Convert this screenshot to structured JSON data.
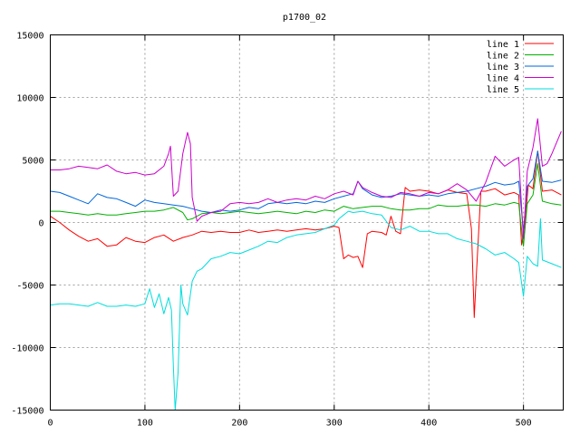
{
  "chart_data": {
    "type": "line",
    "title": "p1700_02",
    "xlabel": "",
    "ylabel": "",
    "xlim": [
      0,
      542
    ],
    "ylim": [
      -15000,
      15000
    ],
    "x_ticks": [
      0,
      100,
      200,
      300,
      400,
      500
    ],
    "y_ticks": [
      -15000,
      -10000,
      -5000,
      0,
      5000,
      10000,
      15000
    ],
    "grid": true,
    "legend_position": "top-right",
    "series": [
      {
        "name": "line 1",
        "color": "#ff0000",
        "points": [
          [
            0,
            500
          ],
          [
            10,
            0
          ],
          [
            20,
            -600
          ],
          [
            30,
            -1100
          ],
          [
            40,
            -1500
          ],
          [
            50,
            -1300
          ],
          [
            60,
            -1900
          ],
          [
            70,
            -1800
          ],
          [
            80,
            -1200
          ],
          [
            90,
            -1500
          ],
          [
            100,
            -1600
          ],
          [
            110,
            -1200
          ],
          [
            120,
            -1000
          ],
          [
            130,
            -1500
          ],
          [
            140,
            -1200
          ],
          [
            150,
            -1000
          ],
          [
            160,
            -700
          ],
          [
            170,
            -800
          ],
          [
            180,
            -700
          ],
          [
            190,
            -800
          ],
          [
            200,
            -800
          ],
          [
            210,
            -600
          ],
          [
            220,
            -800
          ],
          [
            230,
            -700
          ],
          [
            240,
            -600
          ],
          [
            250,
            -700
          ],
          [
            260,
            -600
          ],
          [
            270,
            -500
          ],
          [
            280,
            -600
          ],
          [
            290,
            -500
          ],
          [
            300,
            -300
          ],
          [
            305,
            -400
          ],
          [
            310,
            -2900
          ],
          [
            315,
            -2600
          ],
          [
            320,
            -2800
          ],
          [
            325,
            -2700
          ],
          [
            330,
            -3600
          ],
          [
            335,
            -900
          ],
          [
            340,
            -700
          ],
          [
            350,
            -800
          ],
          [
            355,
            -1000
          ],
          [
            360,
            500
          ],
          [
            365,
            -700
          ],
          [
            370,
            -900
          ],
          [
            375,
            2800
          ],
          [
            380,
            2500
          ],
          [
            390,
            2600
          ],
          [
            400,
            2500
          ],
          [
            410,
            2300
          ],
          [
            420,
            2600
          ],
          [
            430,
            2400
          ],
          [
            440,
            2300
          ],
          [
            445,
            -500
          ],
          [
            448,
            -7600
          ],
          [
            450,
            -4500
          ],
          [
            455,
            2500
          ],
          [
            460,
            2500
          ],
          [
            470,
            2700
          ],
          [
            480,
            2200
          ],
          [
            490,
            2400
          ],
          [
            495,
            2200
          ],
          [
            498,
            -1800
          ],
          [
            502,
            200
          ],
          [
            505,
            3000
          ],
          [
            510,
            2700
          ],
          [
            515,
            5700
          ],
          [
            520,
            2500
          ],
          [
            530,
            2600
          ],
          [
            540,
            2200
          ]
        ]
      },
      {
        "name": "line 2",
        "color": "#00b000",
        "points": [
          [
            0,
            900
          ],
          [
            10,
            900
          ],
          [
            20,
            800
          ],
          [
            30,
            700
          ],
          [
            40,
            600
          ],
          [
            50,
            700
          ],
          [
            60,
            600
          ],
          [
            70,
            600
          ],
          [
            80,
            700
          ],
          [
            90,
            800
          ],
          [
            100,
            900
          ],
          [
            110,
            900
          ],
          [
            120,
            1000
          ],
          [
            130,
            1200
          ],
          [
            140,
            800
          ],
          [
            145,
            200
          ],
          [
            150,
            300
          ],
          [
            160,
            700
          ],
          [
            170,
            800
          ],
          [
            180,
            700
          ],
          [
            190,
            800
          ],
          [
            200,
            900
          ],
          [
            210,
            800
          ],
          [
            220,
            700
          ],
          [
            230,
            800
          ],
          [
            240,
            900
          ],
          [
            250,
            800
          ],
          [
            260,
            700
          ],
          [
            270,
            900
          ],
          [
            280,
            800
          ],
          [
            290,
            1000
          ],
          [
            300,
            900
          ],
          [
            310,
            1300
          ],
          [
            320,
            1100
          ],
          [
            330,
            1200
          ],
          [
            340,
            1300
          ],
          [
            350,
            1300
          ],
          [
            360,
            1100
          ],
          [
            370,
            1000
          ],
          [
            380,
            1000
          ],
          [
            390,
            1100
          ],
          [
            400,
            1100
          ],
          [
            410,
            1400
          ],
          [
            420,
            1300
          ],
          [
            430,
            1300
          ],
          [
            440,
            1400
          ],
          [
            450,
            1400
          ],
          [
            460,
            1300
          ],
          [
            470,
            1500
          ],
          [
            480,
            1400
          ],
          [
            490,
            1600
          ],
          [
            495,
            1500
          ],
          [
            500,
            -1900
          ],
          [
            504,
            1500
          ],
          [
            510,
            2200
          ],
          [
            515,
            4700
          ],
          [
            520,
            1700
          ],
          [
            530,
            1500
          ],
          [
            540,
            1400
          ]
        ]
      },
      {
        "name": "line 3",
        "color": "#0066dd",
        "points": [
          [
            0,
            2500
          ],
          [
            10,
            2400
          ],
          [
            20,
            2100
          ],
          [
            30,
            1800
          ],
          [
            40,
            1500
          ],
          [
            50,
            2300
          ],
          [
            60,
            2000
          ],
          [
            70,
            1900
          ],
          [
            80,
            1600
          ],
          [
            90,
            1300
          ],
          [
            100,
            1800
          ],
          [
            110,
            1600
          ],
          [
            120,
            1500
          ],
          [
            130,
            1400
          ],
          [
            140,
            1300
          ],
          [
            150,
            1100
          ],
          [
            160,
            900
          ],
          [
            170,
            800
          ],
          [
            180,
            1000
          ],
          [
            190,
            900
          ],
          [
            200,
            1000
          ],
          [
            210,
            1200
          ],
          [
            220,
            1100
          ],
          [
            230,
            1500
          ],
          [
            240,
            1600
          ],
          [
            250,
            1500
          ],
          [
            260,
            1600
          ],
          [
            270,
            1500
          ],
          [
            280,
            1700
          ],
          [
            290,
            1600
          ],
          [
            300,
            1900
          ],
          [
            310,
            2100
          ],
          [
            320,
            2300
          ],
          [
            325,
            3300
          ],
          [
            330,
            2700
          ],
          [
            340,
            2200
          ],
          [
            350,
            2000
          ],
          [
            360,
            2100
          ],
          [
            370,
            2300
          ],
          [
            380,
            2200
          ],
          [
            390,
            2100
          ],
          [
            400,
            2200
          ],
          [
            410,
            2100
          ],
          [
            420,
            2300
          ],
          [
            430,
            2400
          ],
          [
            440,
            2500
          ],
          [
            450,
            2700
          ],
          [
            460,
            2900
          ],
          [
            470,
            3200
          ],
          [
            480,
            3000
          ],
          [
            490,
            3100
          ],
          [
            495,
            3300
          ],
          [
            500,
            -700
          ],
          [
            504,
            2900
          ],
          [
            510,
            3500
          ],
          [
            515,
            5700
          ],
          [
            520,
            3300
          ],
          [
            530,
            3200
          ],
          [
            540,
            3400
          ]
        ]
      },
      {
        "name": "line 4",
        "color": "#cc00cc",
        "points": [
          [
            0,
            4200
          ],
          [
            10,
            4200
          ],
          [
            20,
            4300
          ],
          [
            30,
            4500
          ],
          [
            40,
            4400
          ],
          [
            50,
            4300
          ],
          [
            60,
            4600
          ],
          [
            70,
            4100
          ],
          [
            80,
            3900
          ],
          [
            90,
            4000
          ],
          [
            100,
            3800
          ],
          [
            110,
            3900
          ],
          [
            120,
            4500
          ],
          [
            125,
            5500
          ],
          [
            127,
            6100
          ],
          [
            130,
            2100
          ],
          [
            135,
            2500
          ],
          [
            140,
            5500
          ],
          [
            145,
            7200
          ],
          [
            148,
            6300
          ],
          [
            150,
            2000
          ],
          [
            155,
            100
          ],
          [
            160,
            500
          ],
          [
            170,
            800
          ],
          [
            180,
            900
          ],
          [
            190,
            1500
          ],
          [
            200,
            1600
          ],
          [
            210,
            1500
          ],
          [
            220,
            1600
          ],
          [
            230,
            1900
          ],
          [
            240,
            1600
          ],
          [
            250,
            1800
          ],
          [
            260,
            1900
          ],
          [
            270,
            1800
          ],
          [
            280,
            2100
          ],
          [
            290,
            1900
          ],
          [
            300,
            2300
          ],
          [
            310,
            2500
          ],
          [
            320,
            2200
          ],
          [
            325,
            3300
          ],
          [
            330,
            2800
          ],
          [
            340,
            2400
          ],
          [
            350,
            2100
          ],
          [
            360,
            2000
          ],
          [
            370,
            2400
          ],
          [
            380,
            2300
          ],
          [
            390,
            2100
          ],
          [
            400,
            2400
          ],
          [
            410,
            2300
          ],
          [
            420,
            2600
          ],
          [
            430,
            3100
          ],
          [
            440,
            2600
          ],
          [
            450,
            1700
          ],
          [
            460,
            3200
          ],
          [
            470,
            5300
          ],
          [
            480,
            4500
          ],
          [
            490,
            5000
          ],
          [
            495,
            5200
          ],
          [
            500,
            -1300
          ],
          [
            504,
            4100
          ],
          [
            510,
            6000
          ],
          [
            515,
            8300
          ],
          [
            520,
            4500
          ],
          [
            525,
            4700
          ],
          [
            530,
            5500
          ],
          [
            540,
            7300
          ]
        ]
      },
      {
        "name": "line 5",
        "color": "#00dddd",
        "points": [
          [
            0,
            -6600
          ],
          [
            10,
            -6500
          ],
          [
            20,
            -6500
          ],
          [
            30,
            -6600
          ],
          [
            40,
            -6700
          ],
          [
            50,
            -6400
          ],
          [
            60,
            -6700
          ],
          [
            70,
            -6700
          ],
          [
            80,
            -6600
          ],
          [
            90,
            -6700
          ],
          [
            100,
            -6500
          ],
          [
            105,
            -5300
          ],
          [
            110,
            -6800
          ],
          [
            115,
            -5700
          ],
          [
            120,
            -7300
          ],
          [
            125,
            -6000
          ],
          [
            128,
            -7000
          ],
          [
            130,
            -11500
          ],
          [
            132,
            -15000
          ],
          [
            135,
            -12000
          ],
          [
            138,
            -5000
          ],
          [
            140,
            -6500
          ],
          [
            145,
            -7400
          ],
          [
            150,
            -4700
          ],
          [
            155,
            -3900
          ],
          [
            160,
            -3700
          ],
          [
            170,
            -2900
          ],
          [
            180,
            -2700
          ],
          [
            190,
            -2400
          ],
          [
            200,
            -2500
          ],
          [
            210,
            -2200
          ],
          [
            220,
            -1900
          ],
          [
            230,
            -1500
          ],
          [
            240,
            -1600
          ],
          [
            250,
            -1200
          ],
          [
            260,
            -1000
          ],
          [
            270,
            -900
          ],
          [
            280,
            -800
          ],
          [
            290,
            -500
          ],
          [
            300,
            -200
          ],
          [
            305,
            300
          ],
          [
            310,
            600
          ],
          [
            315,
            900
          ],
          [
            320,
            800
          ],
          [
            330,
            900
          ],
          [
            340,
            700
          ],
          [
            350,
            600
          ],
          [
            360,
            -400
          ],
          [
            370,
            -600
          ],
          [
            380,
            -300
          ],
          [
            390,
            -700
          ],
          [
            400,
            -700
          ],
          [
            410,
            -900
          ],
          [
            420,
            -900
          ],
          [
            430,
            -1300
          ],
          [
            440,
            -1500
          ],
          [
            450,
            -1700
          ],
          [
            460,
            -2100
          ],
          [
            470,
            -2600
          ],
          [
            480,
            -2400
          ],
          [
            490,
            -2900
          ],
          [
            495,
            -3200
          ],
          [
            500,
            -5900
          ],
          [
            504,
            -2700
          ],
          [
            510,
            -3300
          ],
          [
            515,
            -3500
          ],
          [
            518,
            300
          ],
          [
            520,
            -3000
          ],
          [
            530,
            -3300
          ],
          [
            540,
            -3600
          ]
        ]
      }
    ]
  }
}
